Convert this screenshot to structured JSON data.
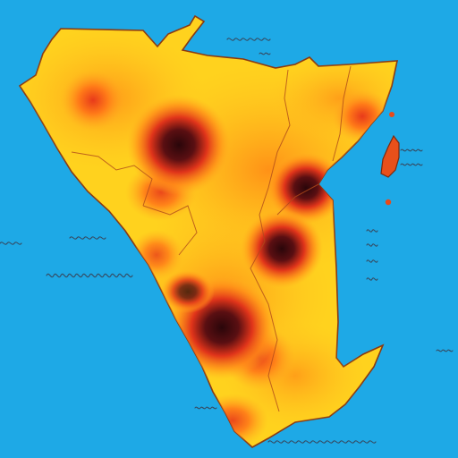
{
  "map": {
    "type": "heatmap-map",
    "colors": {
      "ocean": "#1ea9e6",
      "low": "#ffe82a",
      "mid": "#ff9a18",
      "high": "#e8391a",
      "peak": "#3a0a10",
      "outline": "#7a2a10"
    },
    "labels_note": ""
  }
}
